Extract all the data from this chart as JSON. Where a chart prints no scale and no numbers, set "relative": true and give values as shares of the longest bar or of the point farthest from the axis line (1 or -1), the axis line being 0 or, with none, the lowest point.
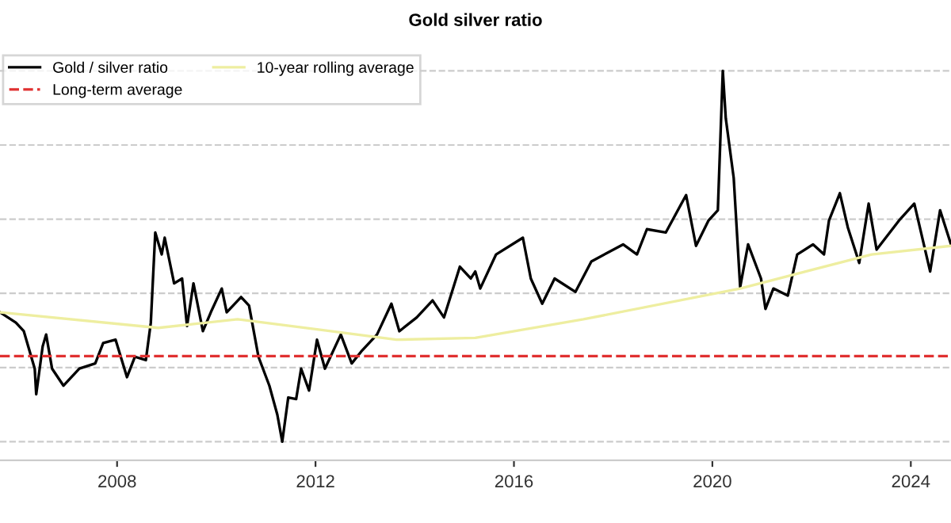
{
  "chart_data": {
    "type": "line",
    "title": "Gold silver ratio",
    "relative": true,
    "xlim": [
      2005.64,
      2024.81
    ],
    "xticks": [
      2008,
      2012,
      2016,
      2020,
      2024
    ],
    "series": [
      {
        "name": "Gold / silver ratio",
        "color": "#000000",
        "x": [
          2005.64,
          2005.96,
          2006.12,
          2006.34,
          2006.37,
          2006.5,
          2006.57,
          2006.69,
          2006.92,
          2007.24,
          2007.56,
          2007.72,
          2007.97,
          2008.2,
          2008.36,
          2008.58,
          2008.68,
          2008.77,
          2008.9,
          2008.96,
          2009.15,
          2009.31,
          2009.41,
          2009.54,
          2009.73,
          2009.89,
          2010.11,
          2010.21,
          2010.5,
          2010.66,
          2010.85,
          2011.07,
          2011.23,
          2011.33,
          2011.45,
          2011.61,
          2011.71,
          2011.87,
          2012.03,
          2012.19,
          2012.51,
          2012.73,
          2012.92,
          2013.24,
          2013.53,
          2013.69,
          2014.04,
          2014.36,
          2014.59,
          2014.91,
          2015.13,
          2015.22,
          2015.32,
          2015.64,
          2016.18,
          2016.34,
          2016.57,
          2016.82,
          2017.24,
          2017.56,
          2018.2,
          2018.48,
          2018.68,
          2019.06,
          2019.47,
          2019.67,
          2019.92,
          2020.11,
          2020.21,
          2020.27,
          2020.43,
          2020.56,
          2020.72,
          2020.98,
          2021.07,
          2021.23,
          2021.52,
          2021.71,
          2022.03,
          2022.25,
          2022.35,
          2022.57,
          2022.73,
          2022.96,
          2023.15,
          2023.31,
          2023.76,
          2024.07,
          2024.39,
          2024.59,
          2024.81
        ],
        "values": [
          0.349,
          0.321,
          0.298,
          0.197,
          0.128,
          0.257,
          0.289,
          0.197,
          0.151,
          0.197,
          0.211,
          0.266,
          0.275,
          0.174,
          0.229,
          0.22,
          0.321,
          0.564,
          0.505,
          0.55,
          0.427,
          0.44,
          0.312,
          0.427,
          0.298,
          0.349,
          0.413,
          0.349,
          0.39,
          0.367,
          0.229,
          0.151,
          0.073,
          0,
          0.119,
          0.115,
          0.197,
          0.138,
          0.275,
          0.197,
          0.289,
          0.211,
          0.243,
          0.289,
          0.372,
          0.298,
          0.335,
          0.381,
          0.335,
          0.472,
          0.44,
          0.459,
          0.413,
          0.505,
          0.55,
          0.44,
          0.372,
          0.44,
          0.404,
          0.486,
          0.532,
          0.505,
          0.573,
          0.564,
          0.665,
          0.528,
          0.596,
          0.624,
          1,
          0.872,
          0.711,
          0.417,
          0.532,
          0.44,
          0.358,
          0.413,
          0.394,
          0.505,
          0.532,
          0.505,
          0.596,
          0.67,
          0.578,
          0.482,
          0.642,
          0.518,
          0.596,
          0.642,
          0.459,
          0.624,
          0.532
        ]
      },
      {
        "name": "10-year rolling average",
        "color": "#eeeea0",
        "x": [
          2005.64,
          2008.83,
          2010.43,
          2012.03,
          2013.63,
          2015.22,
          2017.4,
          2020.56,
          2023.21,
          2024.81
        ],
        "values": [
          0.349,
          0.307,
          0.33,
          0.303,
          0.275,
          0.28,
          0.33,
          0.413,
          0.505,
          0.528
        ]
      }
    ],
    "ref_lines": [
      {
        "axis": "y",
        "value": 0.231,
        "label": "Long-term average",
        "color": "#e03030",
        "line_style": "dashed"
      }
    ],
    "grid": "y",
    "legend": "top left",
    "line_style": "solid",
    "marker": "none"
  }
}
